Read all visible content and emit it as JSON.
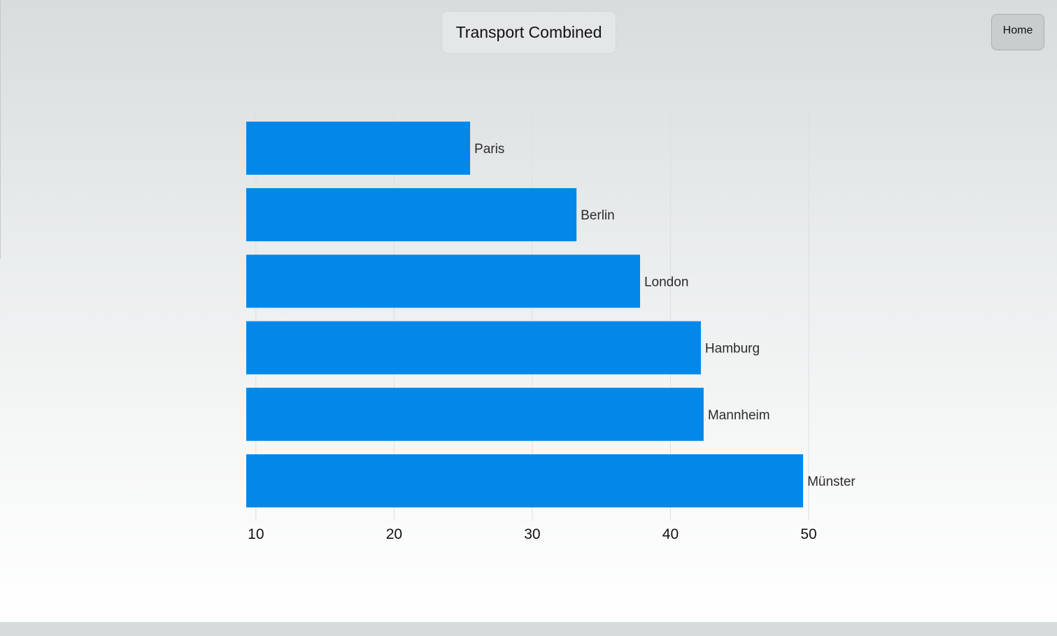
{
  "header": {
    "title": "Transport Combined",
    "home_label": "Home"
  },
  "colors": {
    "bar": "#0388ea",
    "grid": "#dcdfe0",
    "label": "#2b2b2b",
    "tick": "#111111"
  },
  "chart_data": {
    "type": "bar",
    "orientation": "horizontal",
    "categories": [
      "Paris",
      "Berlin",
      "London",
      "Hamburg",
      "Mannheim",
      "Münster"
    ],
    "values": [
      25.5,
      33.2,
      37.8,
      42.2,
      42.4,
      49.6
    ],
    "xlim": [
      9.3,
      50
    ],
    "xticks": [
      10,
      20,
      30,
      40,
      50
    ],
    "grid": true,
    "legend": "none"
  }
}
